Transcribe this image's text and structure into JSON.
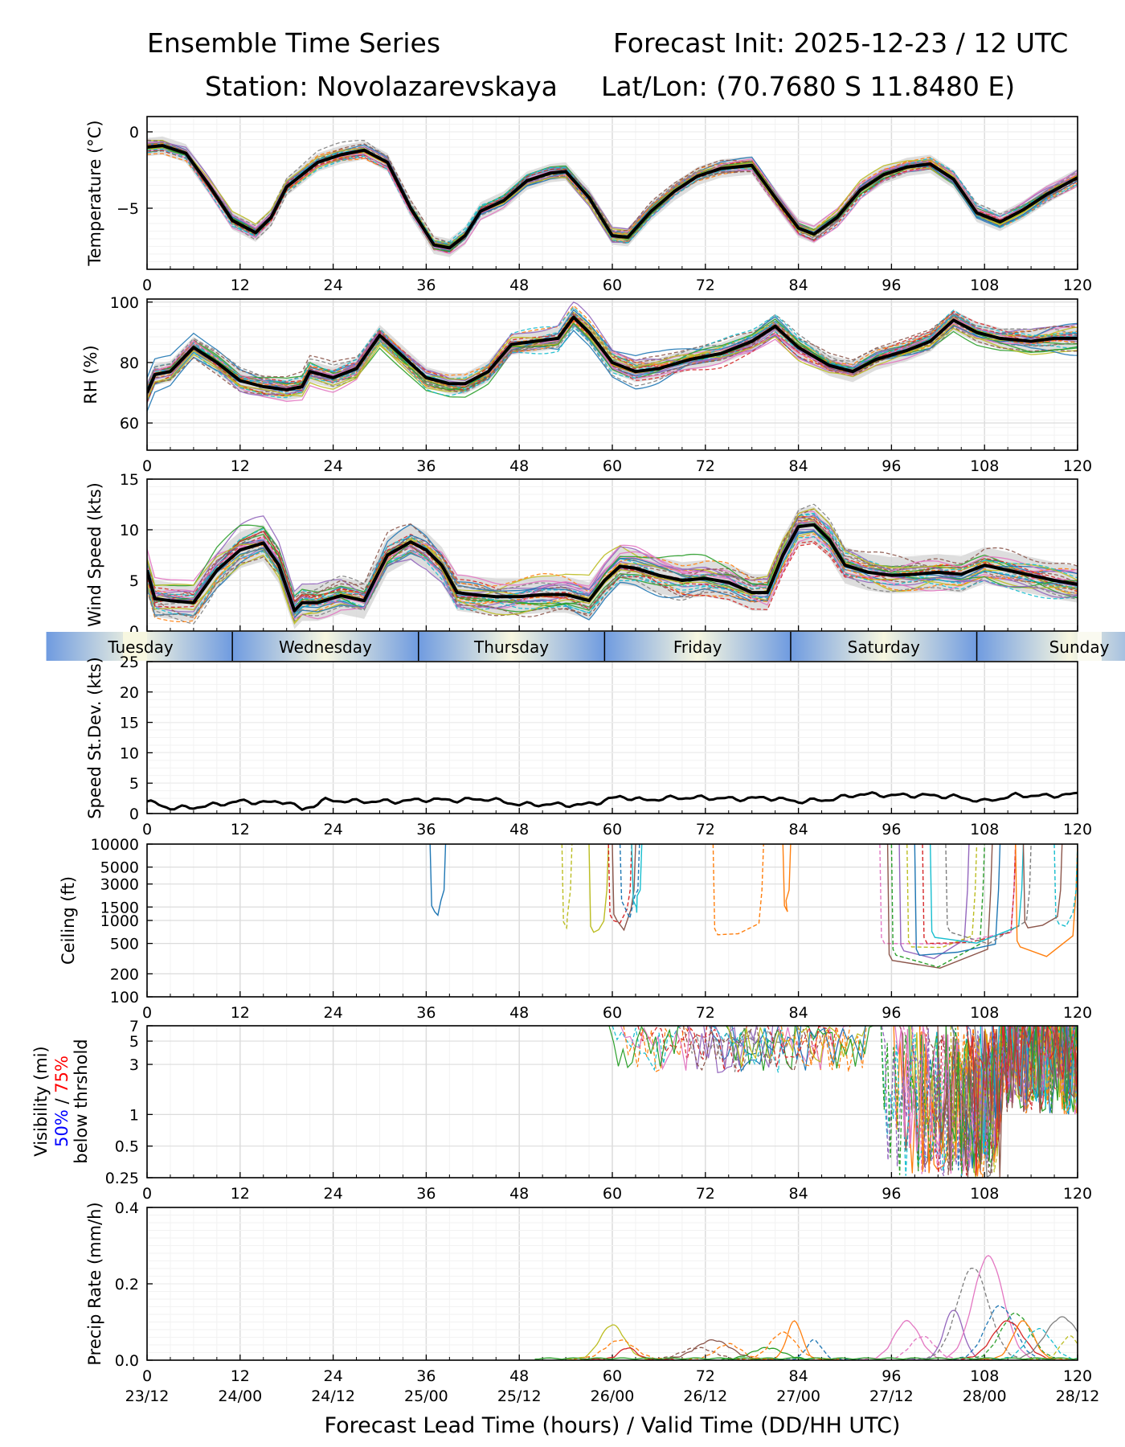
{
  "header": {
    "title_left": "Ensemble Time Series",
    "title_right": "Forecast Init: 2025-12-23 / 12 UTC",
    "station": "Station: Novolazarevskaya",
    "latlon": "Lat/Lon: (70.7680 S 11.8480 E)"
  },
  "colors": {
    "members": [
      "#1f77b4",
      "#ff7f0e",
      "#2ca02c",
      "#d62728",
      "#9467bd",
      "#8c564b",
      "#e377c2",
      "#7f7f7f",
      "#bcbd22",
      "#17becf"
    ],
    "mean": "#000000",
    "spread": "#d3d3d3",
    "day_band_blue": "#6f9be0",
    "day_band_cream": "#f7f7e0",
    "vis_50": "#0000ff",
    "vis_75": "#ff0000"
  },
  "chart_data": [
    {
      "type": "line",
      "name": "temperature",
      "ylabel": "Temperature (°C)",
      "xlim": [
        0,
        120
      ],
      "ylim": [
        -9,
        1
      ],
      "yticks": [
        0,
        -5
      ],
      "xticks": [
        0,
        12,
        24,
        36,
        48,
        60,
        72,
        84,
        96,
        108,
        120
      ],
      "mean": {
        "x": [
          0,
          2,
          5,
          8,
          11,
          14,
          16,
          18,
          20,
          22,
          25,
          28,
          31,
          34,
          37,
          39,
          41,
          43,
          46,
          49,
          52,
          54,
          57,
          60,
          62,
          65,
          68,
          71,
          74,
          78,
          81,
          84,
          86,
          89,
          92,
          95,
          98,
          101,
          104,
          107,
          110,
          113,
          116,
          120
        ],
        "y": [
          -1.0,
          -0.9,
          -1.4,
          -3.5,
          -5.8,
          -6.6,
          -5.6,
          -3.6,
          -2.8,
          -2.0,
          -1.5,
          -1.2,
          -2.0,
          -5.0,
          -7.4,
          -7.6,
          -6.8,
          -5.2,
          -4.5,
          -3.2,
          -2.7,
          -2.6,
          -4.3,
          -6.8,
          -6.9,
          -5.2,
          -3.9,
          -2.9,
          -2.4,
          -2.2,
          -4.3,
          -6.3,
          -6.7,
          -5.6,
          -3.8,
          -2.8,
          -2.3,
          -2.1,
          -3.1,
          -5.3,
          -5.9,
          -5.1,
          -4.1,
          -3.0
        ]
      },
      "spread": 0.6
    },
    {
      "type": "line",
      "name": "relative-humidity",
      "ylabel": "RH (%)",
      "xlim": [
        0,
        120
      ],
      "ylim": [
        51,
        101
      ],
      "yticks": [
        60,
        80,
        100
      ],
      "xticks": [
        0,
        12,
        24,
        36,
        48,
        60,
        72,
        84,
        96,
        108,
        120
      ],
      "mean": {
        "x": [
          0,
          1,
          3,
          6,
          9,
          12,
          15,
          18,
          20,
          21,
          24,
          27,
          30,
          33,
          36,
          39,
          41,
          44,
          47,
          50,
          53,
          55,
          57,
          60,
          63,
          66,
          70,
          74,
          78,
          81,
          84,
          88,
          91,
          94,
          98,
          101,
          104,
          107,
          110,
          114,
          117,
          120
        ],
        "y": [
          70,
          76,
          77,
          85,
          80,
          74,
          72,
          71,
          72,
          77,
          75,
          78,
          89,
          82,
          75,
          73,
          73,
          77,
          86,
          87,
          88,
          95,
          90,
          80,
          77,
          78,
          81,
          83,
          87,
          92,
          85,
          79,
          77,
          81,
          84,
          87,
          94,
          90,
          88,
          87,
          88,
          88
        ]
      },
      "spread": 3.5
    },
    {
      "type": "line",
      "name": "wind-speed",
      "ylabel": "Wind Speed (kts)",
      "xlim": [
        0,
        120
      ],
      "ylim": [
        0,
        15
      ],
      "yticks": [
        0,
        5,
        10,
        15
      ],
      "xticks": [
        0,
        12,
        24,
        36,
        48,
        60,
        72,
        84,
        96,
        108,
        120
      ],
      "mean": {
        "x": [
          0,
          1,
          3,
          6,
          9,
          12,
          15,
          17,
          19,
          20,
          22,
          25,
          28,
          31,
          34,
          36,
          38,
          40,
          42,
          45,
          48,
          51,
          54,
          57,
          59,
          61,
          63,
          66,
          69,
          72,
          75,
          78,
          80,
          82,
          84,
          86,
          88,
          90,
          93,
          96,
          99,
          102,
          105,
          108,
          111,
          114,
          117,
          120
        ],
        "y": [
          6,
          3.2,
          3.0,
          2.8,
          6.0,
          8.0,
          8.7,
          6.5,
          2.0,
          2.8,
          2.8,
          3.5,
          3.0,
          7.5,
          8.8,
          8.0,
          6.5,
          3.8,
          3.6,
          3.4,
          3.4,
          3.6,
          3.6,
          3.0,
          5.0,
          6.4,
          6.2,
          5.5,
          5.0,
          5.2,
          4.8,
          3.8,
          3.8,
          7.5,
          10.3,
          10.5,
          9.0,
          6.5,
          5.8,
          5.5,
          5.6,
          5.8,
          5.6,
          6.5,
          6.0,
          5.5,
          5.0,
          4.6
        ]
      },
      "spread": 1.8
    },
    {
      "type": "line",
      "name": "speed-standard-deviation",
      "ylabel": "Speed St.Dev. (kts)",
      "xlim": [
        0,
        120
      ],
      "ylim": [
        0,
        25
      ],
      "yticks": [
        0,
        5,
        10,
        15,
        20,
        25
      ],
      "xticks": [
        0,
        12,
        24,
        36,
        48,
        60,
        72,
        84,
        96,
        108,
        120
      ],
      "mean": {
        "x": [
          0,
          3,
          6,
          9,
          12,
          16,
          18,
          20,
          23,
          27,
          32,
          36,
          40,
          44,
          48,
          52,
          56,
          58,
          61,
          64,
          68,
          72,
          76,
          80,
          84,
          88,
          92,
          96,
          100,
          104,
          108,
          112,
          116,
          120
        ],
        "y": [
          2.0,
          0.9,
          1.0,
          1.5,
          2.0,
          1.8,
          2.0,
          0.6,
          2.2,
          2.0,
          2.0,
          2.3,
          2.2,
          2.4,
          1.5,
          1.5,
          1.4,
          1.8,
          2.8,
          2.2,
          2.6,
          2.6,
          2.4,
          2.6,
          2.0,
          2.3,
          3.2,
          3.0,
          3.0,
          2.8,
          2.0,
          3.0,
          2.9,
          3.2
        ]
      }
    },
    {
      "type": "line",
      "name": "ceiling",
      "ylabel": "Ceiling (ft)",
      "yscale": "log",
      "xlim": [
        0,
        120
      ],
      "ylim": [
        100,
        10000
      ],
      "ytick_labels": [
        "10000",
        "5000",
        "3000",
        "1500",
        "1000",
        "500",
        "200",
        "100"
      ],
      "ytick_values": [
        10000,
        5000,
        3000,
        1500,
        1000,
        500,
        200,
        100
      ],
      "xticks": [
        0,
        12,
        24,
        36,
        48,
        60,
        72,
        84,
        96,
        108,
        120
      ]
    },
    {
      "type": "line",
      "name": "visibility",
      "ylabel": "Visibility (mi)",
      "ylabel_pct50": "50%",
      "ylabel_sep": " / ",
      "ylabel_pct75": "75%",
      "ylabel_line3": "below thrshold",
      "yscale": "log",
      "xlim": [
        0,
        120
      ],
      "ylim": [
        0.25,
        7
      ],
      "ytick_labels": [
        "7",
        "5",
        "3",
        "1",
        "0.5",
        "0.25"
      ],
      "ytick_values": [
        7,
        5,
        3,
        1,
        0.5,
        0.25
      ],
      "xticks": [
        0,
        12,
        24,
        36,
        48,
        60,
        72,
        84,
        96,
        108,
        120
      ]
    },
    {
      "type": "line",
      "name": "precipitation-rate",
      "ylabel": "Precip Rate (mm/h)",
      "xlim": [
        0,
        120
      ],
      "ylim": [
        0,
        0.4
      ],
      "yticks": [
        0.0,
        0.2,
        0.4
      ],
      "ytick_labels": [
        "0.0",
        "0.2",
        "0.4"
      ],
      "xticks": [
        0,
        12,
        24,
        36,
        48,
        60,
        72,
        84,
        96,
        108,
        120
      ],
      "valid_time_labels": [
        "23/12",
        "24/00",
        "24/12",
        "25/00",
        "25/12",
        "26/00",
        "26/12",
        "27/00",
        "27/12",
        "28/00",
        "28/12"
      ],
      "xlabel": "Forecast Lead Time (hours) / Valid Time (DD/HH UTC)"
    }
  ],
  "day_band": {
    "days": [
      {
        "label": "Tuesday",
        "start": 0,
        "end": 11
      },
      {
        "label": "Wednesday",
        "start": 11,
        "end": 35
      },
      {
        "label": "Thursday",
        "start": 35,
        "end": 59
      },
      {
        "label": "Friday",
        "start": 59,
        "end": 83
      },
      {
        "label": "Saturday",
        "start": 83,
        "end": 107
      },
      {
        "label": "Sunday",
        "start": 107,
        "end": 120
      }
    ]
  }
}
